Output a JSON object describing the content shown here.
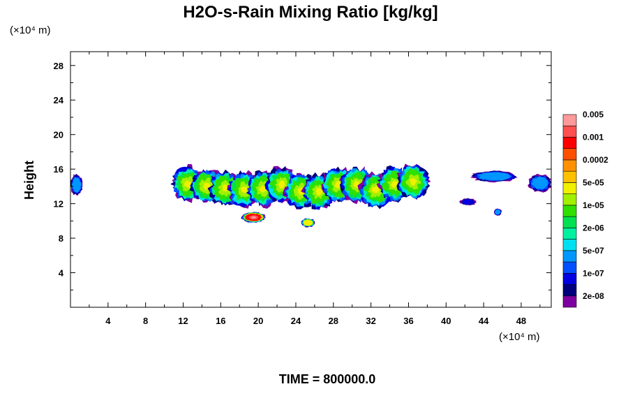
{
  "chart_data": {
    "type": "heatmap",
    "title": "H2O-s-Rain Mixing Ratio [kg/kg]",
    "xlabel": "",
    "ylabel": "Height",
    "x_unit": "(×10⁴ m)",
    "y_unit": "(×10⁴ m)",
    "xlim": [
      0,
      51.2
    ],
    "ylim": [
      0,
      29.6
    ],
    "x_ticks": [
      4,
      8,
      12,
      16,
      20,
      24,
      28,
      32,
      36,
      40,
      44,
      48
    ],
    "y_ticks": [
      4,
      8,
      12,
      16,
      20,
      24,
      28
    ],
    "time_label": "TIME = 800000.0",
    "colorbar": {
      "colors": [
        "#7f00a0",
        "#00007f",
        "#0000e0",
        "#0050ff",
        "#0096ff",
        "#00e0f0",
        "#00f0a0",
        "#00e050",
        "#30e000",
        "#a0f000",
        "#f0f000",
        "#ffc000",
        "#ff9000",
        "#ff5000",
        "#ff0000",
        "#ff5050",
        "#ff9a9a"
      ],
      "labels": [
        "2e-08",
        "1e-07",
        "5e-07",
        "2e-06",
        "1e-05",
        "5e-05",
        "0.0002",
        "0.001",
        "0.005"
      ]
    },
    "features": [
      {
        "x": [
          11.5,
          37.5
        ],
        "y": [
          11.5,
          16.5
        ],
        "level": "1e-05",
        "peak": "5e-05"
      },
      {
        "x": [
          0,
          1.3
        ],
        "y": [
          12.8,
          15.2
        ],
        "level": "5e-07"
      },
      {
        "x": [
          18.3,
          20.7
        ],
        "y": [
          9.8,
          11.0
        ],
        "level": "0.001",
        "peak": "0.005"
      },
      {
        "x": [
          24.6,
          26.0
        ],
        "y": [
          9.2,
          10.2
        ],
        "level": "5e-05"
      },
      {
        "x": [
          41.5,
          43.2
        ],
        "y": [
          11.8,
          12.6
        ],
        "level": "1e-07"
      },
      {
        "x": [
          42.8,
          47.5
        ],
        "y": [
          14.5,
          15.8
        ],
        "level": "5e-07"
      },
      {
        "x": [
          45.1,
          45.9
        ],
        "y": [
          10.6,
          11.4
        ],
        "level": "5e-07"
      },
      {
        "x": [
          48.8,
          51.2
        ],
        "y": [
          13.2,
          15.2
        ],
        "level": "5e-07"
      }
    ]
  }
}
